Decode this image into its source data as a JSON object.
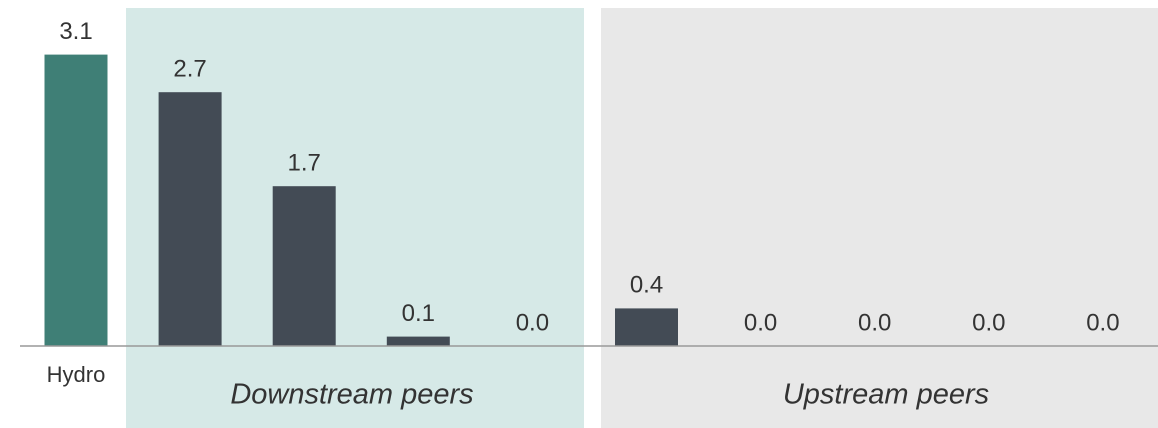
{
  "chart_data": {
    "type": "bar",
    "categories": [
      "Hydro",
      null,
      null,
      null,
      null,
      null,
      null,
      null,
      null,
      null
    ],
    "values": [
      3.1,
      2.7,
      1.7,
      0.1,
      0,
      0.4,
      0,
      0,
      0,
      0
    ],
    "value_labels": [
      "3.1",
      "2.7",
      "1.7",
      "0.1",
      "0.0",
      "0.4",
      "0.0",
      "0.0",
      "0.0",
      "0.0"
    ],
    "colors": [
      "#3f7f76",
      "#434b55",
      "#434b55",
      "#434b55",
      "#434b55",
      "#434b55",
      "#434b55",
      "#434b55",
      "#434b55",
      "#434b55"
    ],
    "groups": [
      "Downstream peers",
      "Upstream peers"
    ]
  }
}
